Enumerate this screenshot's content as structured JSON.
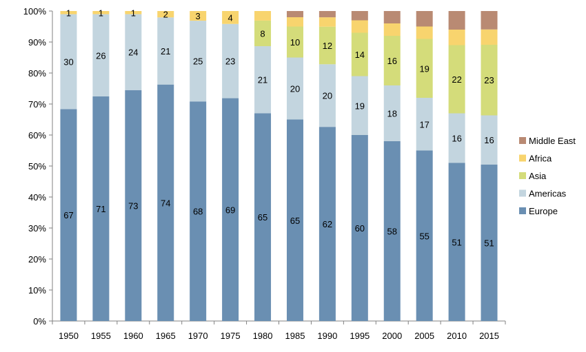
{
  "chart_data": {
    "type": "bar",
    "stacked": true,
    "percent_stacked": true,
    "categories": [
      "1950",
      "1955",
      "1960",
      "1965",
      "1970",
      "1975",
      "1980",
      "1985",
      "1990",
      "1995",
      "2000",
      "2005",
      "2010",
      "2015"
    ],
    "series": [
      {
        "name": "Europe",
        "color": "#6a8fb2",
        "values": [
          67,
          71,
          73,
          74,
          68,
          69,
          65,
          65,
          62,
          60,
          58,
          55,
          51,
          51
        ]
      },
      {
        "name": "Americas",
        "color": "#c3d5df",
        "values": [
          30,
          26,
          24,
          21,
          25,
          23,
          21,
          20,
          20,
          19,
          18,
          17,
          16,
          16
        ]
      },
      {
        "name": "Asia",
        "color": "#d4dc7a",
        "values": [
          0,
          0,
          0,
          0,
          0,
          0,
          8,
          10,
          12,
          14,
          16,
          19,
          22,
          23
        ]
      },
      {
        "name": "Africa",
        "color": "#f8d46e",
        "values": [
          1,
          1,
          1,
          2,
          3,
          4,
          3,
          3,
          3,
          4,
          4,
          4,
          5,
          5
        ]
      },
      {
        "name": "Middle East",
        "color": "#b98a73",
        "values": [
          0,
          0,
          0,
          0,
          0,
          0,
          0,
          2,
          2,
          3,
          4,
          5,
          6,
          6
        ]
      }
    ],
    "data_labels": {
      "Europe": [
        "67",
        "71",
        "73",
        "74",
        "68",
        "69",
        "65",
        "65",
        "62",
        "60",
        "58",
        "55",
        "51",
        "51"
      ],
      "Americas": [
        "30",
        "26",
        "24",
        "21",
        "25",
        "23",
        "21",
        "20",
        "20",
        "19",
        "18",
        "17",
        "16",
        "16"
      ],
      "Asia": [
        "",
        "",
        "",
        "",
        "",
        "",
        "8",
        "10",
        "12",
        "14",
        "16",
        "19",
        "22",
        "23"
      ],
      "Africa": [
        "1",
        "1",
        "1",
        "2",
        "3",
        "4",
        "",
        "",
        "",
        "",
        "",
        "",
        "",
        ""
      ]
    },
    "y_ticks": [
      "0%",
      "10%",
      "20%",
      "30%",
      "40%",
      "50%",
      "60%",
      "70%",
      "80%",
      "90%",
      "100%"
    ],
    "ylim": [
      0,
      100
    ],
    "grid": false,
    "legend": {
      "placement": "right",
      "entries": [
        "Middle East",
        "Africa",
        "Asia",
        "Americas",
        "Europe"
      ]
    }
  }
}
